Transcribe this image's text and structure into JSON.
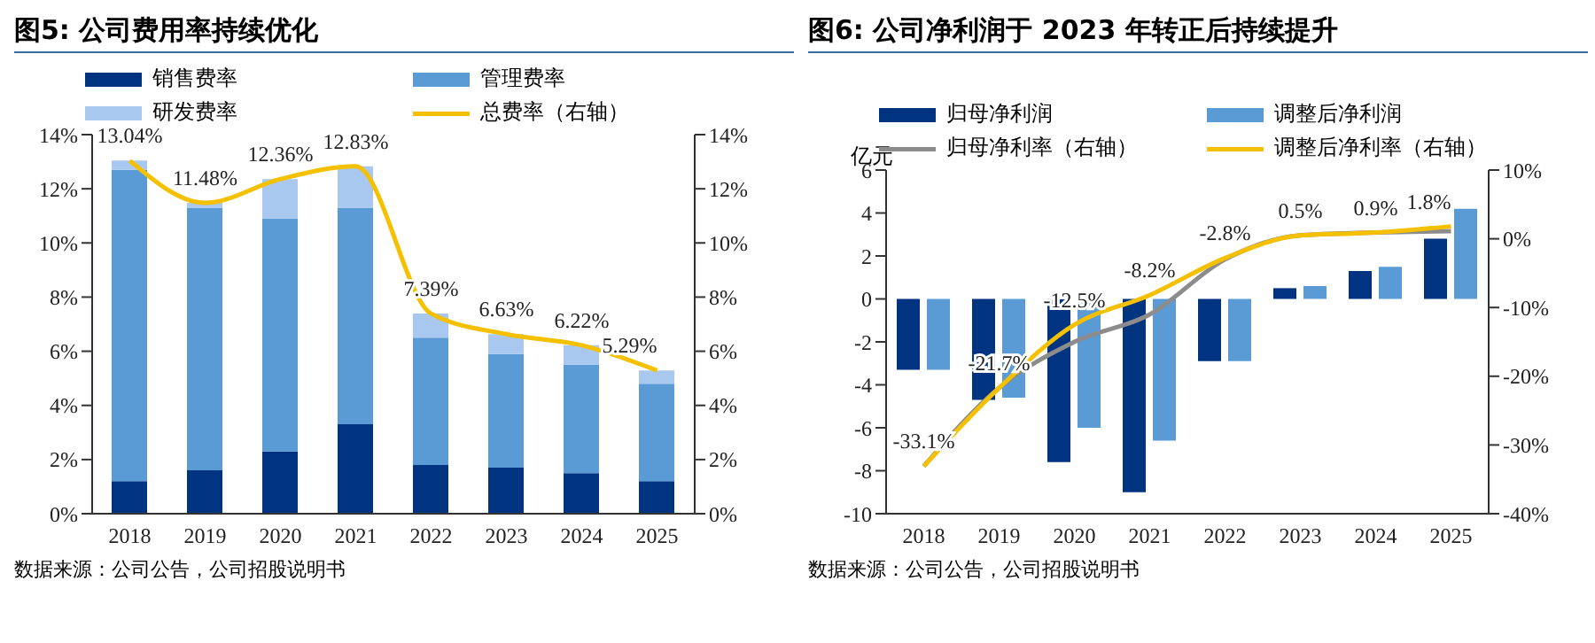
{
  "chart_data": [
    {
      "type": "bar",
      "title": "图5: 公司费用率持续优化",
      "categories": [
        "2018",
        "2019",
        "2020",
        "2021",
        "2022",
        "2023",
        "2024",
        "2025"
      ],
      "stacked": true,
      "legend": "top",
      "annotations": [
        "数据来源：公司公告，公司招股说明书"
      ],
      "ylim": [
        0,
        14
      ],
      "yticks": [
        {
          "value": 0,
          "label": "0%"
        },
        {
          "value": 2,
          "label": "2%"
        },
        {
          "value": 4,
          "label": "4%"
        },
        {
          "value": 6,
          "label": "6%"
        },
        {
          "value": 8,
          "label": "8%"
        },
        {
          "value": 10,
          "label": "10%"
        },
        {
          "value": 12,
          "label": "12%"
        },
        {
          "value": 14,
          "label": "14%"
        }
      ],
      "y2lim": [
        0,
        14
      ],
      "y2ticks": [
        {
          "value": 0,
          "label": "0%"
        },
        {
          "value": 2,
          "label": "2%"
        },
        {
          "value": 4,
          "label": "4%"
        },
        {
          "value": 6,
          "label": "6%"
        },
        {
          "value": 8,
          "label": "8%"
        },
        {
          "value": 10,
          "label": "10%"
        },
        {
          "value": 12,
          "label": "12%"
        },
        {
          "value": 14,
          "label": "14%"
        }
      ],
      "series": [
        {
          "name": "销售费率",
          "color": "#003380",
          "values": [
            1.2,
            1.6,
            2.3,
            3.3,
            1.8,
            1.7,
            1.5,
            1.2
          ]
        },
        {
          "name": "管理费率",
          "color": "#5b9bd5",
          "values": [
            11.5,
            9.7,
            8.6,
            8.0,
            4.7,
            4.2,
            4.0,
            3.6
          ]
        },
        {
          "name": "研发费率",
          "color": "#a9c8f0",
          "values": [
            0.34,
            0.18,
            1.46,
            1.53,
            0.89,
            0.73,
            0.72,
            0.49
          ]
        },
        {
          "name": "总费率（右轴）",
          "type": "line",
          "axis": "y2",
          "color": "#f5c000",
          "marker": "none",
          "values": [
            13.04,
            11.48,
            12.36,
            12.83,
            7.39,
            6.63,
            6.22,
            5.29
          ],
          "value_labels": [
            "13.04%",
            "11.48%",
            "12.36%",
            "12.83%",
            "7.39%",
            "6.63%",
            "6.22%",
            "5.29%"
          ]
        }
      ]
    },
    {
      "type": "bar",
      "title": "图6: 公司净利润于 2023 年转正后持续提升",
      "categories": [
        "2018",
        "2019",
        "2020",
        "2021",
        "2022",
        "2023",
        "2024",
        "2025"
      ],
      "legend": "top",
      "ylabel": "亿元",
      "annotations": [
        "数据来源：公司公告，公司招股说明书"
      ],
      "ylim": [
        -10,
        6
      ],
      "yticks": [
        -10,
        -8,
        -6,
        -4,
        -2,
        0,
        2,
        4,
        6
      ],
      "y2lim": [
        -40,
        10
      ],
      "y2ticks": [
        {
          "value": -40,
          "label": "-40%"
        },
        {
          "value": -30,
          "label": "-30%"
        },
        {
          "value": -20,
          "label": "-20%"
        },
        {
          "value": -10,
          "label": "-10%"
        },
        {
          "value": 0,
          "label": "0%"
        },
        {
          "value": 10,
          "label": "10%"
        }
      ],
      "series": [
        {
          "name": "归母净利润",
          "color": "#003380",
          "values": [
            -3.3,
            -4.7,
            -7.6,
            -9.0,
            -2.9,
            0.5,
            1.3,
            2.8
          ]
        },
        {
          "name": "调整后净利润",
          "color": "#5b9bd5",
          "values": [
            -3.3,
            -4.6,
            -6.0,
            -6.6,
            -2.9,
            0.6,
            1.5,
            4.2
          ]
        },
        {
          "name": "归母净利率（右轴）",
          "type": "line",
          "axis": "y2",
          "color": "#8c8c8c",
          "marker": "none",
          "values": [
            -33.1,
            -21.7,
            -15,
            -11,
            -3,
            0.5,
            0.9,
            1.1
          ]
        },
        {
          "name": "调整后净利率（右轴）",
          "type": "line",
          "axis": "y2",
          "color": "#f5c000",
          "marker": "none",
          "values": [
            -33.1,
            -21.7,
            -12.5,
            -8.2,
            -2.8,
            0.5,
            0.9,
            1.8
          ],
          "value_labels": [
            "-33.1%",
            "-21.7%",
            "-12.5%",
            "-8.2%",
            "-2.8%",
            "0.5%",
            "0.9%",
            "1.8%"
          ]
        }
      ]
    }
  ]
}
